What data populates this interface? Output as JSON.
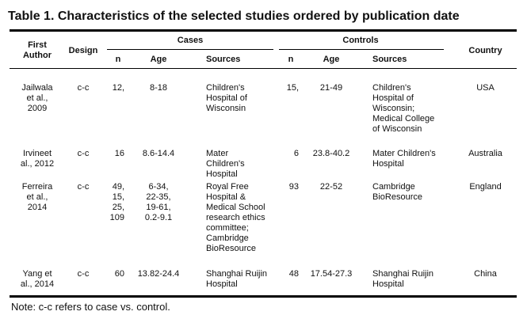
{
  "title": "Table 1. Characteristics of the selected studies ordered by publication date",
  "headers": {
    "first_author": "First\nAuthor",
    "design": "Design",
    "cases": "Cases",
    "controls": "Controls",
    "country": "Country",
    "n": "n",
    "age": "Age",
    "sources": "Sources"
  },
  "rows": [
    {
      "author": "Jailwala\net al.,\n2009",
      "design": "c-c",
      "case_n": "12,",
      "case_age": "8-18",
      "case_sources": "Children's\nHospital of\nWisconsin",
      "ctrl_n": "15,",
      "ctrl_age": "21-49",
      "ctrl_sources": "Children's\nHospital of\nWisconsin;\nMedical College\nof Wisconsin",
      "country": "USA"
    },
    {
      "author": "Irvineet\nal., 2012",
      "design": "c-c",
      "case_n": "16",
      "case_age": "8.6-14.4",
      "case_sources": "Mater\nChildren's\nHospital",
      "ctrl_n": "6",
      "ctrl_age": "23.8-40.2",
      "ctrl_sources": "Mater Children's\nHospital",
      "country": "Australia"
    },
    {
      "author": "Ferreira\net al.,\n2014",
      "design": "c-c",
      "case_n": "49,\n15,\n25,\n109",
      "case_age": "6-34,\n22-35,\n19-61,\n0.2-9.1",
      "case_sources": "Royal Free\nHospital &\nMedical School\nresearch ethics\ncommittee;\nCambridge\nBioResource",
      "ctrl_n": "93",
      "ctrl_age": "22-52",
      "ctrl_sources": "Cambridge\nBioResource",
      "country": "England"
    },
    {
      "author": "Yang et\nal., 2014",
      "design": "c-c",
      "case_n": "60",
      "case_age": "13.82-24.4",
      "case_sources": "Shanghai Ruijin\nHospital",
      "ctrl_n": "48",
      "ctrl_age": "17.54-27.3",
      "ctrl_sources": "Shanghai Ruijin\nHospital",
      "country": "China"
    }
  ],
  "note": "Note: c-c refers to case vs. control."
}
